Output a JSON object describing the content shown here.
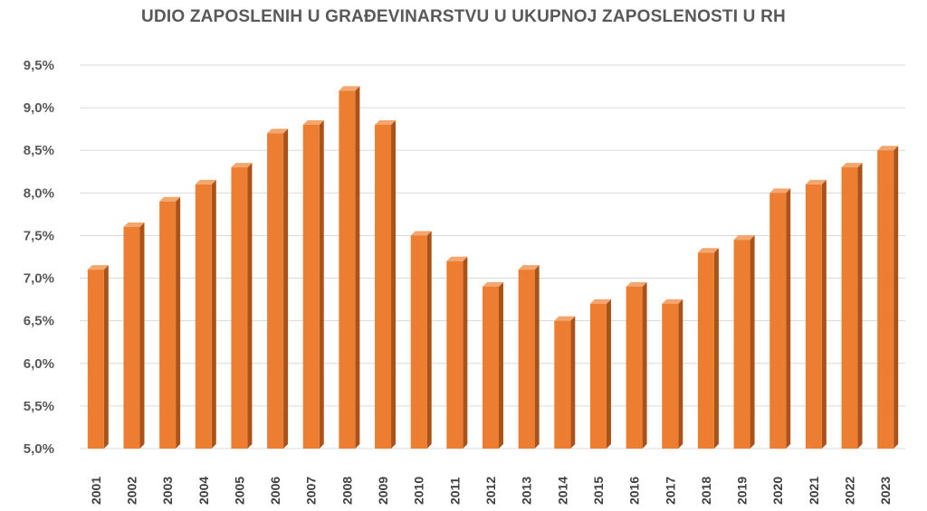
{
  "chart_data": {
    "type": "bar",
    "title": "UDIO ZAPOSLENIH U GRAĐEVINARSTVU U UKUPNOJ ZAPOSLENOSTI U RH",
    "xlabel": "",
    "ylabel": "",
    "categories": [
      "2001",
      "2002",
      "2003",
      "2004",
      "2005",
      "2006",
      "2007",
      "2008",
      "2009",
      "2010",
      "2011",
      "2012",
      "2013",
      "2014",
      "2015",
      "2016",
      "2017",
      "2018",
      "2019",
      "2020",
      "2021",
      "2022",
      "2023"
    ],
    "values": [
      7.1,
      7.6,
      7.9,
      8.1,
      8.3,
      8.7,
      8.8,
      9.2,
      8.8,
      7.5,
      7.2,
      6.9,
      7.1,
      6.5,
      6.7,
      6.9,
      6.7,
      7.3,
      7.45,
      8.0,
      8.1,
      8.3,
      8.5
    ],
    "ylim": [
      5.0,
      9.5
    ],
    "yticks": [
      "5,0%",
      "5,5%",
      "6,0%",
      "6,5%",
      "7,0%",
      "7,5%",
      "8,0%",
      "8,5%",
      "9,0%",
      "9,5%"
    ],
    "grid": true,
    "legend": "none",
    "colors": {
      "bar_front": "#ED7D31",
      "bar_side": "#A9531A",
      "bar_top": "#F4A66F"
    }
  }
}
